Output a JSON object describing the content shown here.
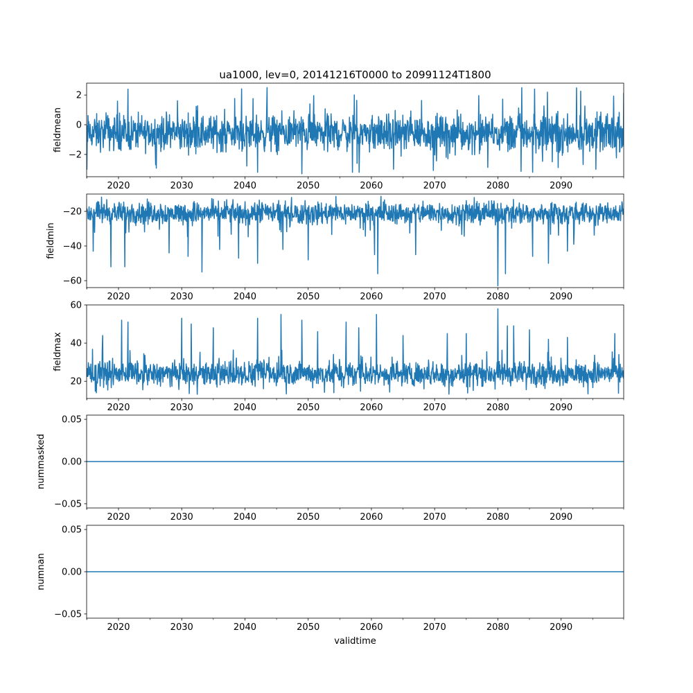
{
  "colors": {
    "series": "#1f77b4",
    "axes": "#000000",
    "background": "#ffffff"
  },
  "chart_data": [
    {
      "type": "line",
      "title": "ua1000, lev=0, 20141216T0000 to 20991124T1800",
      "ylabel": "fieldmean",
      "xlabel": "",
      "xlim": [
        2014.96,
        2099.9
      ],
      "ylim": [
        -3.5,
        2.8
      ],
      "yticks": [
        -2,
        0,
        2
      ],
      "ytick_labels": [
        "−2",
        "0",
        "2"
      ],
      "xticks": [
        2020,
        2030,
        2040,
        2050,
        2060,
        2070,
        2080,
        2090
      ],
      "xtick_labels": [
        "2020",
        "2030",
        "2040",
        "2050",
        "2060",
        "2070",
        "2080",
        "2090"
      ],
      "series": [
        {
          "name": "fieldmean",
          "baseline": -0.6,
          "typical_range": [
            -2.3,
            1.2
          ],
          "extreme_range": [
            -3.3,
            2.5
          ],
          "spikes": [
            {
              "x": 2021.5,
              "y": 2.4
            },
            {
              "x": 2043.5,
              "y": 2.5
            },
            {
              "x": 2049.0,
              "y": -3.3
            },
            {
              "x": 2042.0,
              "y": -3.2
            },
            {
              "x": 2057.0,
              "y": -3.2
            },
            {
              "x": 2063.5,
              "y": -3.0
            },
            {
              "x": 2085.5,
              "y": -3.2
            },
            {
              "x": 2095.5,
              "y": -3.0
            },
            {
              "x": 2015.0,
              "y": -3.0
            }
          ]
        }
      ]
    },
    {
      "type": "line",
      "ylabel": "fieldmin",
      "xlabel": "",
      "xlim": [
        2014.96,
        2099.9
      ],
      "ylim": [
        -64,
        -10
      ],
      "yticks": [
        -60,
        -40,
        -20
      ],
      "ytick_labels": [
        "−60",
        "−40",
        "−20"
      ],
      "xticks": [
        2020,
        2030,
        2040,
        2050,
        2060,
        2070,
        2080,
        2090
      ],
      "xtick_labels": [
        "2020",
        "2030",
        "2040",
        "2050",
        "2060",
        "2070",
        "2080",
        "2090"
      ],
      "series": [
        {
          "name": "fieldmin",
          "baseline": -20,
          "typical_range": [
            -30,
            -12
          ],
          "extreme_range": [
            -35,
            -11
          ],
          "spikes": [
            {
              "x": 2016.0,
              "y": -43
            },
            {
              "x": 2018.8,
              "y": -52
            },
            {
              "x": 2021.0,
              "y": -52
            },
            {
              "x": 2028.0,
              "y": -44
            },
            {
              "x": 2033.2,
              "y": -55
            },
            {
              "x": 2031.0,
              "y": -46
            },
            {
              "x": 2036.0,
              "y": -42
            },
            {
              "x": 2039.0,
              "y": -47
            },
            {
              "x": 2042.0,
              "y": -50
            },
            {
              "x": 2046.0,
              "y": -42
            },
            {
              "x": 2050.0,
              "y": -48
            },
            {
              "x": 2060.5,
              "y": -45
            },
            {
              "x": 2061.0,
              "y": -56
            },
            {
              "x": 2067.0,
              "y": -45
            },
            {
              "x": 2080.0,
              "y": -63
            },
            {
              "x": 2081.2,
              "y": -56
            },
            {
              "x": 2085.5,
              "y": -46
            },
            {
              "x": 2088.0,
              "y": -50
            },
            {
              "x": 2091.0,
              "y": -43
            },
            {
              "x": 2092.0,
              "y": -39
            }
          ]
        }
      ]
    },
    {
      "type": "line",
      "ylabel": "fieldmax",
      "xlabel": "",
      "xlim": [
        2014.96,
        2099.9
      ],
      "ylim": [
        11,
        60
      ],
      "yticks": [
        20,
        40,
        60
      ],
      "ytick_labels": [
        "20",
        "40",
        "60"
      ],
      "xticks": [
        2020,
        2030,
        2040,
        2050,
        2060,
        2070,
        2080,
        2090
      ],
      "xtick_labels": [
        "2020",
        "2030",
        "2040",
        "2050",
        "2060",
        "2070",
        "2080",
        "2090"
      ],
      "series": [
        {
          "name": "fieldmax",
          "baseline": 24,
          "typical_range": [
            15,
            33
          ],
          "extreme_range": [
            13,
            37
          ],
          "spikes": [
            {
              "x": 2017.5,
              "y": 44
            },
            {
              "x": 2020.5,
              "y": 52
            },
            {
              "x": 2021.5,
              "y": 51
            },
            {
              "x": 2030.0,
              "y": 53
            },
            {
              "x": 2031.5,
              "y": 50
            },
            {
              "x": 2035.0,
              "y": 48
            },
            {
              "x": 2042.0,
              "y": 53
            },
            {
              "x": 2045.7,
              "y": 55
            },
            {
              "x": 2049.0,
              "y": 52
            },
            {
              "x": 2051.5,
              "y": 46
            },
            {
              "x": 2056.0,
              "y": 51
            },
            {
              "x": 2058.0,
              "y": 48
            },
            {
              "x": 2060.8,
              "y": 55
            },
            {
              "x": 2065.0,
              "y": 44
            },
            {
              "x": 2072.0,
              "y": 45
            },
            {
              "x": 2075.0,
              "y": 45
            },
            {
              "x": 2080.0,
              "y": 58
            },
            {
              "x": 2081.5,
              "y": 49
            },
            {
              "x": 2082.5,
              "y": 49
            },
            {
              "x": 2085.0,
              "y": 47
            },
            {
              "x": 2088.0,
              "y": 42
            },
            {
              "x": 2091.0,
              "y": 43
            },
            {
              "x": 2098.5,
              "y": 45
            }
          ]
        }
      ]
    },
    {
      "type": "line",
      "ylabel": "nummasked",
      "xlabel": "",
      "xlim": [
        2014.96,
        2099.9
      ],
      "ylim": [
        -0.055,
        0.055
      ],
      "yticks": [
        -0.05,
        0.0,
        0.05
      ],
      "ytick_labels": [
        "−0.05",
        "0.00",
        "0.05"
      ],
      "xticks": [
        2020,
        2030,
        2040,
        2050,
        2060,
        2070,
        2080,
        2090
      ],
      "xtick_labels": [
        "2020",
        "2030",
        "2040",
        "2050",
        "2060",
        "2070",
        "2080",
        "2090"
      ],
      "series": [
        {
          "name": "nummasked",
          "constant": 0.0
        }
      ]
    },
    {
      "type": "line",
      "ylabel": "numnan",
      "xlabel": "validtime",
      "xlim": [
        2014.96,
        2099.9
      ],
      "ylim": [
        -0.055,
        0.055
      ],
      "yticks": [
        -0.05,
        0.0,
        0.05
      ],
      "ytick_labels": [
        "−0.05",
        "0.00",
        "0.05"
      ],
      "xticks": [
        2020,
        2030,
        2040,
        2050,
        2060,
        2070,
        2080,
        2090
      ],
      "xtick_labels": [
        "2020",
        "2030",
        "2040",
        "2050",
        "2060",
        "2070",
        "2080",
        "2090"
      ],
      "series": [
        {
          "name": "numnan",
          "constant": 0.0
        }
      ]
    }
  ]
}
